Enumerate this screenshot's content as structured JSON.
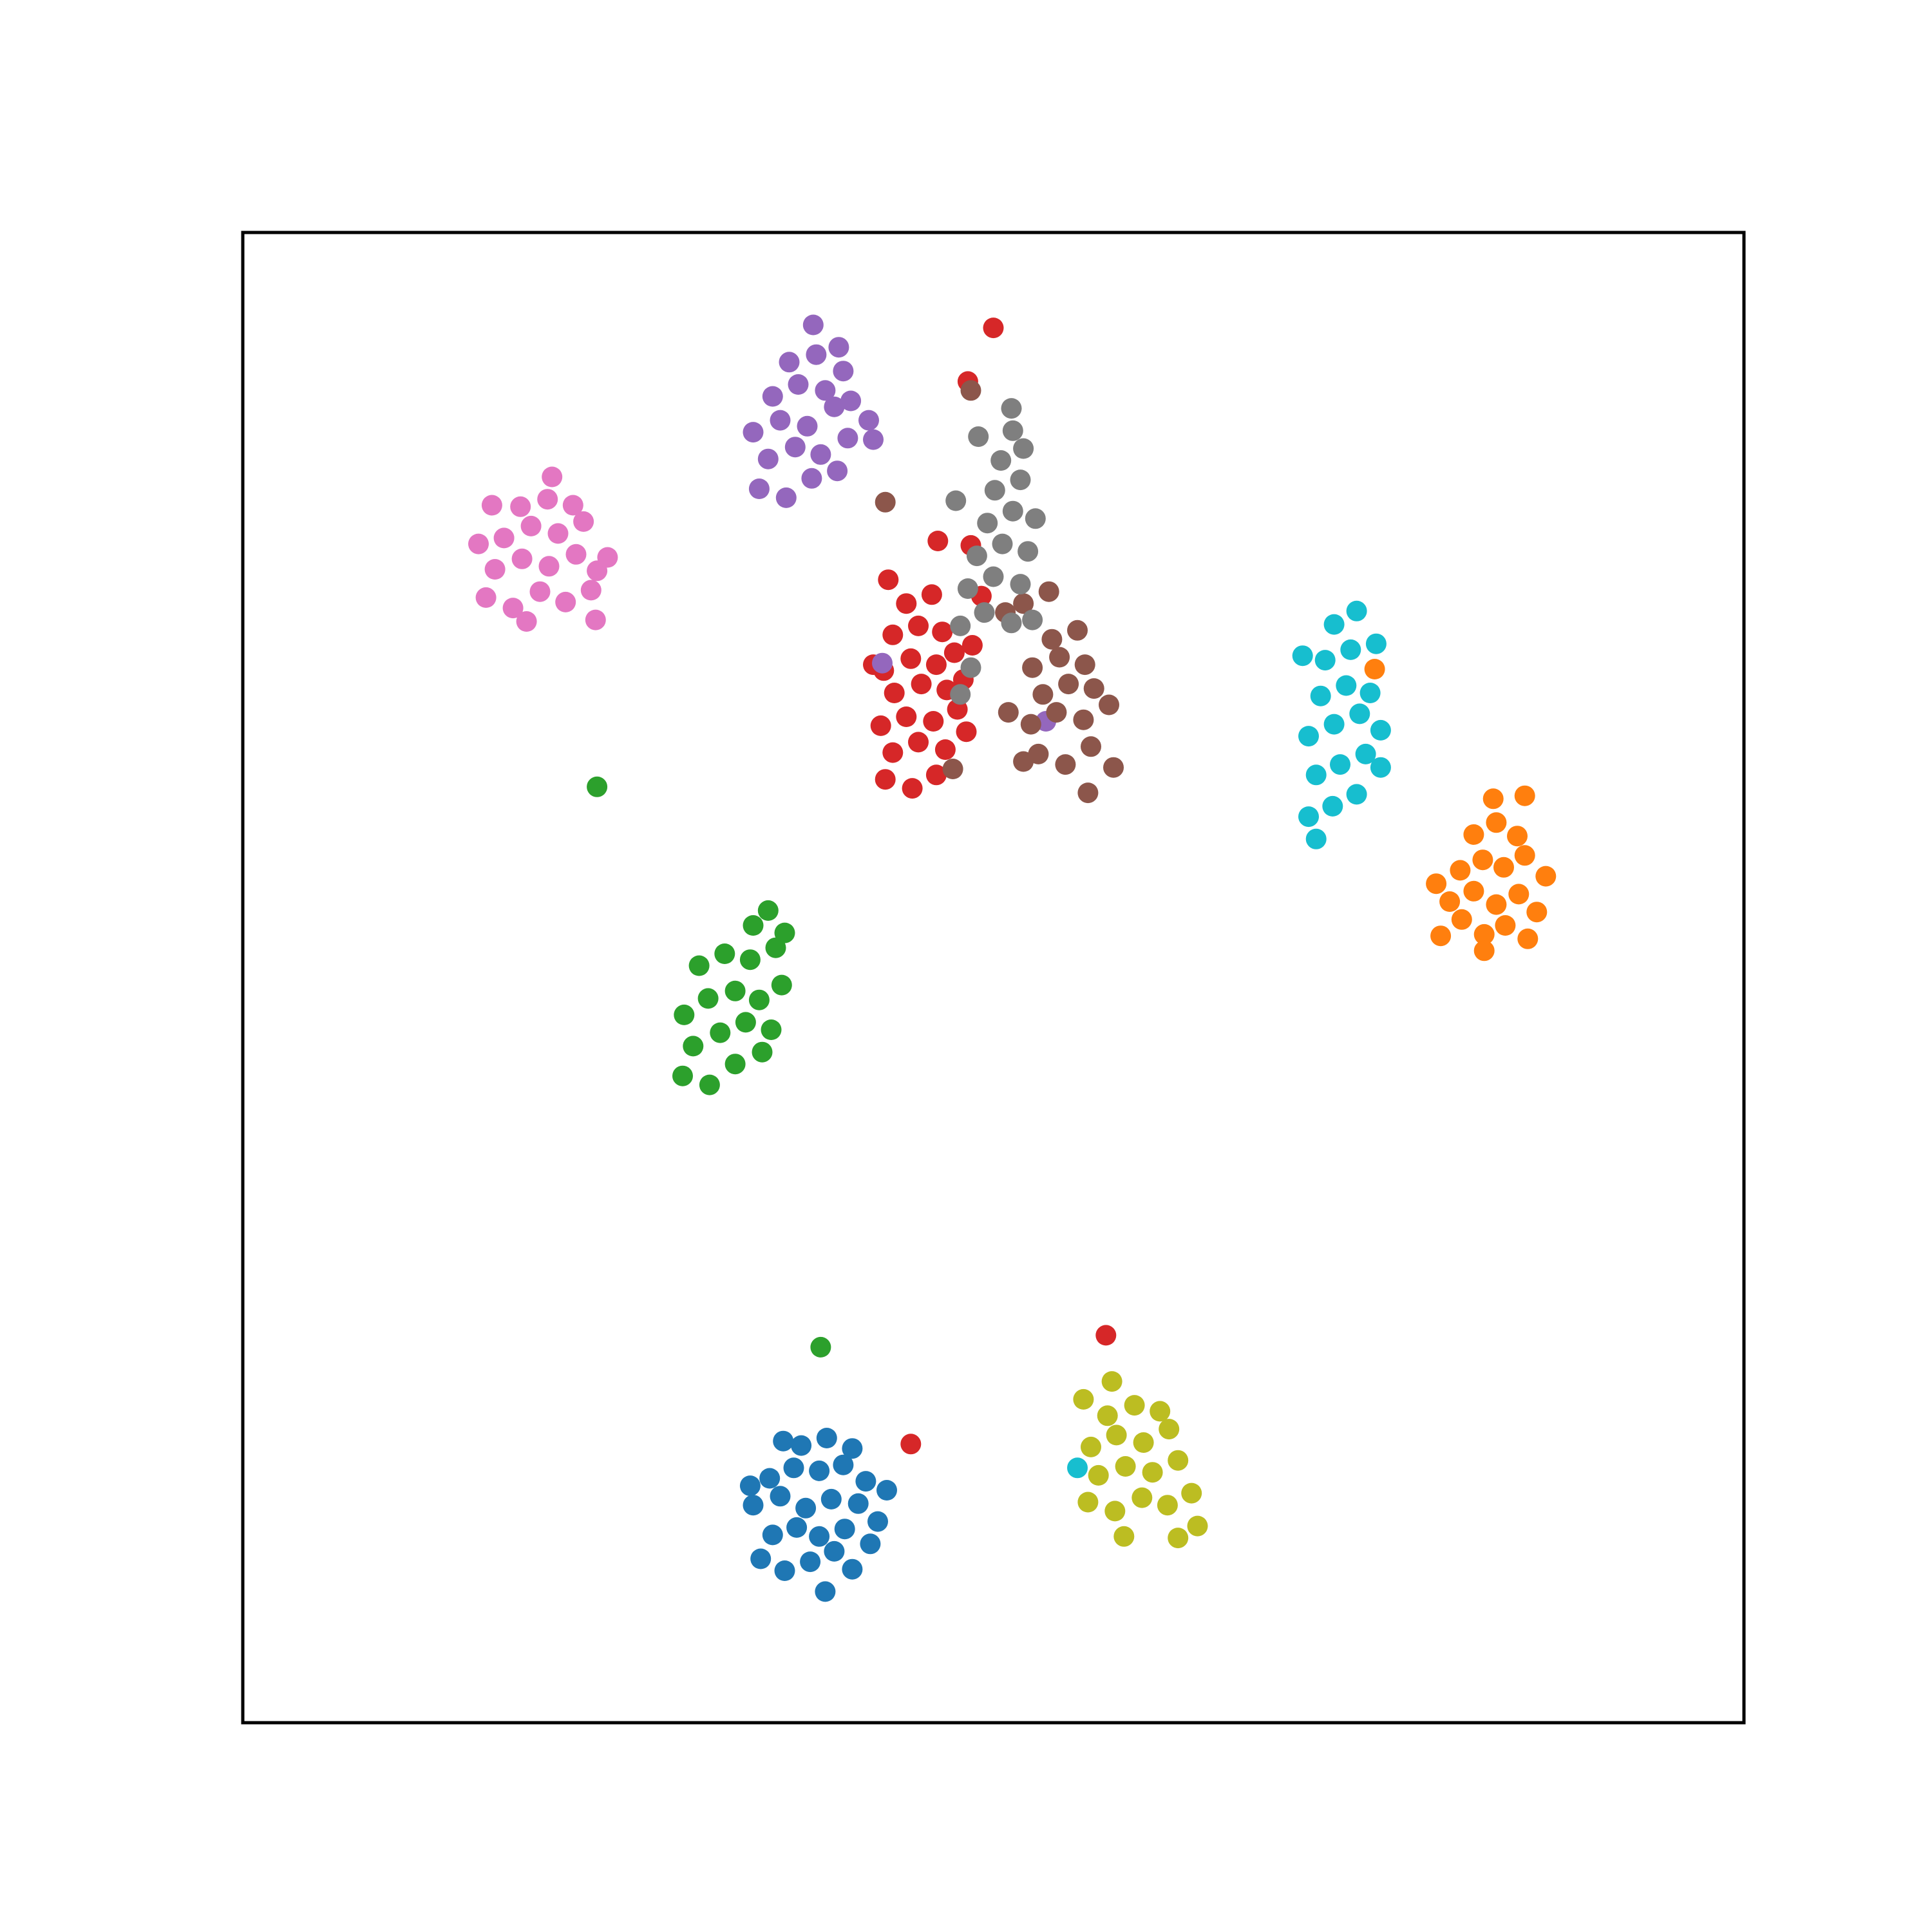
{
  "chart_data": {
    "type": "scatter",
    "title": "",
    "xlabel": "",
    "ylabel": "",
    "xlim": [
      0,
      100
    ],
    "ylim": [
      0,
      100
    ],
    "ticks_visible": false,
    "grid": false,
    "legend": "none",
    "marker": "circle",
    "series": [
      {
        "color": "#1f77b4",
        "points": [
          [
            34.5,
            11.0
          ],
          [
            36.1,
            10.2
          ],
          [
            37.8,
            10.8
          ],
          [
            39.4,
            11.5
          ],
          [
            40.6,
            10.3
          ],
          [
            35.3,
            12.6
          ],
          [
            36.9,
            13.1
          ],
          [
            38.4,
            12.5
          ],
          [
            40.1,
            13.0
          ],
          [
            41.8,
            12.0
          ],
          [
            34.0,
            14.6
          ],
          [
            35.8,
            15.2
          ],
          [
            37.5,
            14.4
          ],
          [
            39.2,
            15.0
          ],
          [
            41.0,
            14.7
          ],
          [
            42.3,
            13.5
          ],
          [
            35.1,
            16.4
          ],
          [
            36.7,
            17.1
          ],
          [
            38.4,
            16.9
          ],
          [
            40.0,
            17.3
          ],
          [
            41.5,
            16.2
          ],
          [
            37.2,
            18.6
          ],
          [
            38.9,
            19.1
          ],
          [
            40.6,
            18.4
          ],
          [
            36.0,
            18.9
          ],
          [
            38.8,
            8.8
          ],
          [
            42.9,
            15.6
          ],
          [
            33.8,
            15.9
          ]
        ]
      },
      {
        "color": "#ff7f0e",
        "points": [
          [
            79.8,
            52.8
          ],
          [
            81.2,
            53.9
          ],
          [
            82.7,
            52.9
          ],
          [
            84.1,
            53.5
          ],
          [
            85.6,
            52.6
          ],
          [
            80.4,
            55.1
          ],
          [
            82.0,
            55.8
          ],
          [
            83.5,
            54.9
          ],
          [
            85.0,
            55.6
          ],
          [
            86.2,
            54.4
          ],
          [
            81.1,
            57.2
          ],
          [
            82.6,
            57.9
          ],
          [
            84.0,
            57.4
          ],
          [
            85.4,
            58.2
          ],
          [
            82.0,
            59.6
          ],
          [
            83.5,
            60.4
          ],
          [
            84.9,
            59.5
          ],
          [
            83.3,
            62.0
          ],
          [
            79.5,
            56.3
          ],
          [
            86.8,
            56.8
          ],
          [
            82.7,
            51.8
          ],
          [
            85.4,
            62.2
          ],
          [
            75.4,
            70.7
          ]
        ]
      },
      {
        "color": "#2ca02c",
        "points": [
          [
            29.3,
            43.4
          ],
          [
            31.1,
            42.8
          ],
          [
            32.8,
            44.2
          ],
          [
            34.6,
            45.0
          ],
          [
            30.0,
            45.4
          ],
          [
            31.8,
            46.3
          ],
          [
            33.5,
            47.0
          ],
          [
            35.2,
            46.5
          ],
          [
            29.4,
            47.5
          ],
          [
            31.0,
            48.6
          ],
          [
            32.8,
            49.1
          ],
          [
            34.4,
            48.5
          ],
          [
            35.9,
            49.5
          ],
          [
            30.4,
            50.8
          ],
          [
            32.1,
            51.6
          ],
          [
            33.8,
            51.2
          ],
          [
            35.5,
            52.0
          ],
          [
            34.0,
            53.5
          ],
          [
            35.0,
            54.5
          ],
          [
            36.1,
            53.0
          ],
          [
            23.6,
            62.8
          ],
          [
            38.5,
            25.2
          ]
        ]
      },
      {
        "color": "#d62728",
        "points": [
          [
            42.8,
            63.3
          ],
          [
            44.6,
            62.7
          ],
          [
            46.2,
            63.6
          ],
          [
            43.3,
            65.1
          ],
          [
            45.0,
            65.8
          ],
          [
            46.8,
            65.3
          ],
          [
            42.5,
            66.9
          ],
          [
            44.2,
            67.5
          ],
          [
            46.0,
            67.2
          ],
          [
            47.6,
            68.0
          ],
          [
            43.4,
            69.1
          ],
          [
            45.2,
            69.7
          ],
          [
            46.9,
            69.3
          ],
          [
            42.7,
            70.6
          ],
          [
            44.5,
            71.4
          ],
          [
            46.2,
            71.0
          ],
          [
            47.4,
            71.8
          ],
          [
            43.3,
            73.0
          ],
          [
            45.0,
            73.6
          ],
          [
            46.6,
            73.2
          ],
          [
            44.2,
            75.1
          ],
          [
            45.9,
            75.7
          ],
          [
            43.0,
            76.7
          ],
          [
            42.0,
            71.0
          ],
          [
            48.6,
            72.3
          ],
          [
            46.3,
            79.3
          ],
          [
            48.5,
            79.0
          ],
          [
            49.2,
            75.6
          ],
          [
            48.2,
            66.5
          ],
          [
            48.0,
            70.0
          ],
          [
            48.3,
            90.0
          ],
          [
            50.0,
            93.6
          ],
          [
            57.5,
            26.0
          ],
          [
            44.5,
            18.7
          ]
        ]
      },
      {
        "color": "#9467bd",
        "points": [
          [
            34.4,
            82.8
          ],
          [
            36.2,
            82.2
          ],
          [
            37.9,
            83.5
          ],
          [
            39.6,
            84.0
          ],
          [
            35.0,
            84.8
          ],
          [
            36.8,
            85.6
          ],
          [
            38.5,
            85.1
          ],
          [
            40.3,
            86.2
          ],
          [
            34.0,
            86.6
          ],
          [
            35.8,
            87.4
          ],
          [
            37.6,
            87.0
          ],
          [
            39.4,
            88.3
          ],
          [
            35.3,
            89.0
          ],
          [
            37.0,
            89.8
          ],
          [
            38.8,
            89.4
          ],
          [
            40.0,
            90.7
          ],
          [
            36.4,
            91.3
          ],
          [
            38.2,
            91.8
          ],
          [
            39.7,
            92.3
          ],
          [
            41.7,
            87.4
          ],
          [
            40.5,
            88.7
          ],
          [
            42.0,
            86.1
          ],
          [
            38.0,
            93.8
          ],
          [
            42.6,
            71.1
          ],
          [
            53.5,
            67.2
          ]
        ]
      },
      {
        "color": "#8c564b",
        "points": [
          [
            53.0,
            65.0
          ],
          [
            54.8,
            64.3
          ],
          [
            56.5,
            65.5
          ],
          [
            52.5,
            67.0
          ],
          [
            54.2,
            67.8
          ],
          [
            56.0,
            67.3
          ],
          [
            57.7,
            68.3
          ],
          [
            53.3,
            69.0
          ],
          [
            55.0,
            69.7
          ],
          [
            56.7,
            69.4
          ],
          [
            52.6,
            70.8
          ],
          [
            54.4,
            71.5
          ],
          [
            56.1,
            71.0
          ],
          [
            53.9,
            72.7
          ],
          [
            55.6,
            73.3
          ],
          [
            52.0,
            75.1
          ],
          [
            53.7,
            75.9
          ],
          [
            51.0,
            67.8
          ],
          [
            52.0,
            64.5
          ],
          [
            50.8,
            74.5
          ],
          [
            56.3,
            62.4
          ],
          [
            58.0,
            64.1
          ],
          [
            47.3,
            64.0
          ],
          [
            42.8,
            81.9
          ],
          [
            48.5,
            89.4
          ]
        ]
      },
      {
        "color": "#e377c2",
        "points": [
          [
            16.2,
            75.5
          ],
          [
            18.0,
            74.8
          ],
          [
            19.8,
            75.9
          ],
          [
            21.5,
            75.2
          ],
          [
            23.2,
            76.0
          ],
          [
            16.8,
            77.4
          ],
          [
            18.6,
            78.1
          ],
          [
            20.4,
            77.6
          ],
          [
            22.2,
            78.4
          ],
          [
            23.6,
            77.3
          ],
          [
            17.4,
            79.5
          ],
          [
            19.2,
            80.3
          ],
          [
            21.0,
            79.8
          ],
          [
            22.7,
            80.6
          ],
          [
            18.5,
            81.6
          ],
          [
            20.3,
            82.1
          ],
          [
            22.0,
            81.7
          ],
          [
            20.6,
            83.6
          ],
          [
            23.5,
            74.0
          ],
          [
            15.7,
            79.1
          ],
          [
            24.3,
            78.2
          ],
          [
            18.9,
            73.9
          ],
          [
            16.6,
            81.7
          ]
        ]
      },
      {
        "color": "#7f7f7f",
        "points": [
          [
            47.8,
            73.6
          ],
          [
            49.4,
            74.5
          ],
          [
            51.2,
            73.8
          ],
          [
            48.3,
            76.1
          ],
          [
            50.0,
            76.9
          ],
          [
            51.8,
            76.4
          ],
          [
            48.9,
            78.3
          ],
          [
            50.6,
            79.1
          ],
          [
            52.3,
            78.6
          ],
          [
            49.6,
            80.5
          ],
          [
            51.3,
            81.3
          ],
          [
            52.8,
            80.8
          ],
          [
            50.1,
            82.7
          ],
          [
            51.8,
            83.4
          ],
          [
            50.5,
            84.7
          ],
          [
            52.0,
            85.5
          ],
          [
            51.3,
            86.7
          ],
          [
            49.0,
            86.3
          ],
          [
            47.5,
            82.0
          ],
          [
            52.6,
            74.0
          ],
          [
            48.5,
            70.8
          ],
          [
            47.8,
            69.0
          ],
          [
            51.2,
            88.2
          ]
        ]
      },
      {
        "color": "#bcbd22",
        "points": [
          [
            56.3,
            14.8
          ],
          [
            58.1,
            14.2
          ],
          [
            59.9,
            15.1
          ],
          [
            61.6,
            14.6
          ],
          [
            63.2,
            15.4
          ],
          [
            57.0,
            16.6
          ],
          [
            58.8,
            17.2
          ],
          [
            60.6,
            16.8
          ],
          [
            62.3,
            17.6
          ],
          [
            56.5,
            18.5
          ],
          [
            58.2,
            19.3
          ],
          [
            60.0,
            18.8
          ],
          [
            61.7,
            19.7
          ],
          [
            57.6,
            20.6
          ],
          [
            59.4,
            21.3
          ],
          [
            61.1,
            20.9
          ],
          [
            56.0,
            21.7
          ],
          [
            57.9,
            22.9
          ],
          [
            62.3,
            12.4
          ],
          [
            58.7,
            12.5
          ],
          [
            63.6,
            13.2
          ]
        ]
      },
      {
        "color": "#17becf",
        "points": [
          [
            71.0,
            60.8
          ],
          [
            72.6,
            61.5
          ],
          [
            74.2,
            62.3
          ],
          [
            71.5,
            63.6
          ],
          [
            73.1,
            64.3
          ],
          [
            74.8,
            65.0
          ],
          [
            71.0,
            66.2
          ],
          [
            72.7,
            67.0
          ],
          [
            74.4,
            67.7
          ],
          [
            75.8,
            66.6
          ],
          [
            71.8,
            68.9
          ],
          [
            73.5,
            69.6
          ],
          [
            75.1,
            69.1
          ],
          [
            72.1,
            71.3
          ],
          [
            73.8,
            72.0
          ],
          [
            75.5,
            72.4
          ],
          [
            72.7,
            73.7
          ],
          [
            74.2,
            74.6
          ],
          [
            70.6,
            71.6
          ],
          [
            75.8,
            64.1
          ],
          [
            71.5,
            59.3
          ],
          [
            55.6,
            17.1
          ]
        ]
      }
    ]
  }
}
